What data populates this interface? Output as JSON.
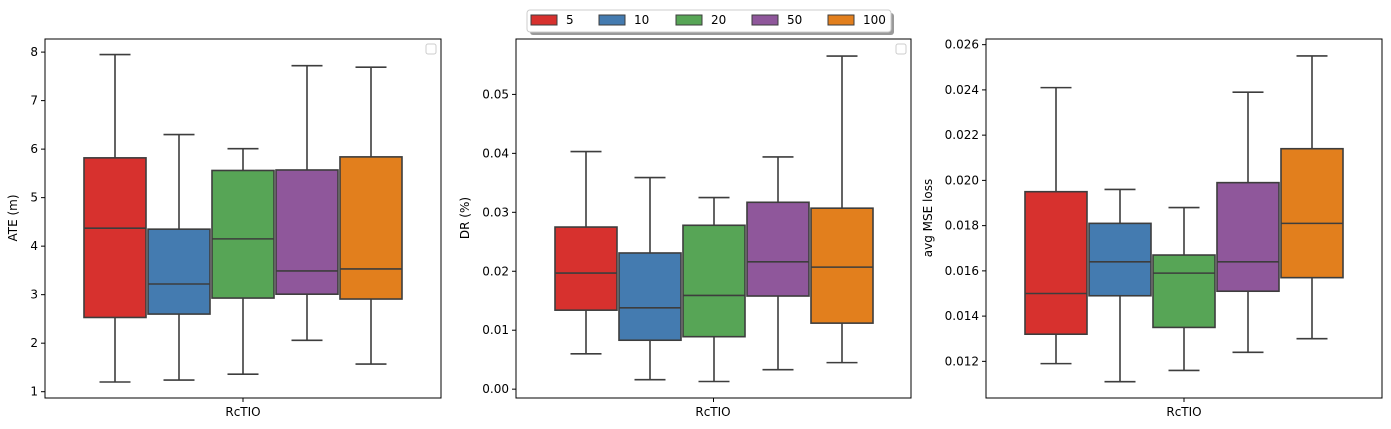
{
  "legend": {
    "entries": [
      {
        "label": "5",
        "color": "#d7312e"
      },
      {
        "label": "10",
        "color": "#447bb0"
      },
      {
        "label": "20",
        "color": "#57a556"
      },
      {
        "label": "50",
        "color": "#8f579b"
      },
      {
        "label": "100",
        "color": "#e27f1d"
      }
    ]
  },
  "chart_data": [
    {
      "type": "box",
      "category": "RcTIO",
      "ylabel": "ATE (m)",
      "ylim": [
        0.87,
        8.27
      ],
      "yticks": [
        1,
        2,
        3,
        4,
        5,
        6,
        7,
        8
      ],
      "series": [
        {
          "name": "5",
          "whisker_low": 1.2,
          "q1": 2.53,
          "median": 4.37,
          "q3": 5.82,
          "whisker_high": 7.95
        },
        {
          "name": "10",
          "whisker_low": 1.24,
          "q1": 2.6,
          "median": 3.22,
          "q3": 4.35,
          "whisker_high": 6.3
        },
        {
          "name": "20",
          "whisker_low": 1.36,
          "q1": 2.93,
          "median": 4.15,
          "q3": 5.56,
          "whisker_high": 6.01
        },
        {
          "name": "50",
          "whisker_low": 2.06,
          "q1": 3.01,
          "median": 3.49,
          "q3": 5.57,
          "whisker_high": 7.72
        },
        {
          "name": "100",
          "whisker_low": 1.57,
          "q1": 2.91,
          "median": 3.53,
          "q3": 5.84,
          "whisker_high": 7.69
        }
      ]
    },
    {
      "type": "box",
      "category": "RcTIO",
      "ylabel": "DR (%)",
      "ylim": [
        -0.0015,
        0.0594
      ],
      "yticks": [
        0.0,
        0.01,
        0.02,
        0.03,
        0.04,
        0.05
      ],
      "ytick_labels": [
        "0.00",
        "0.01",
        "0.02",
        "0.03",
        "0.04",
        "0.05"
      ],
      "series": [
        {
          "name": "5",
          "whisker_low": 0.006,
          "q1": 0.0134,
          "median": 0.0197,
          "q3": 0.0275,
          "whisker_high": 0.0403
        },
        {
          "name": "10",
          "whisker_low": 0.0016,
          "q1": 0.0083,
          "median": 0.0138,
          "q3": 0.0231,
          "whisker_high": 0.0359
        },
        {
          "name": "20",
          "whisker_low": 0.0013,
          "q1": 0.0089,
          "median": 0.0159,
          "q3": 0.0278,
          "whisker_high": 0.0325
        },
        {
          "name": "50",
          "whisker_low": 0.0033,
          "q1": 0.0158,
          "median": 0.0216,
          "q3": 0.0317,
          "whisker_high": 0.0394
        },
        {
          "name": "100",
          "whisker_low": 0.0045,
          "q1": 0.0112,
          "median": 0.0207,
          "q3": 0.0307,
          "whisker_high": 0.0565
        }
      ]
    },
    {
      "type": "box",
      "category": "RcTIO",
      "ylabel": "avg MSE loss",
      "ylim": [
        0.01038,
        0.02625
      ],
      "yticks": [
        0.012,
        0.014,
        0.016,
        0.018,
        0.02,
        0.022,
        0.024,
        0.026
      ],
      "ytick_labels": [
        "0.012",
        "0.014",
        "0.016",
        "0.018",
        "0.020",
        "0.022",
        "0.024",
        "0.026"
      ],
      "series": [
        {
          "name": "5",
          "whisker_low": 0.0119,
          "q1": 0.0132,
          "median": 0.015,
          "q3": 0.0195,
          "whisker_high": 0.0241
        },
        {
          "name": "10",
          "whisker_low": 0.0111,
          "q1": 0.0149,
          "median": 0.0164,
          "q3": 0.0181,
          "whisker_high": 0.0196
        },
        {
          "name": "20",
          "whisker_low": 0.0116,
          "q1": 0.0135,
          "median": 0.0159,
          "q3": 0.0167,
          "whisker_high": 0.0188
        },
        {
          "name": "50",
          "whisker_low": 0.0124,
          "q1": 0.0151,
          "median": 0.0164,
          "q3": 0.0199,
          "whisker_high": 0.0239
        },
        {
          "name": "100",
          "whisker_low": 0.013,
          "q1": 0.0157,
          "median": 0.0181,
          "q3": 0.0214,
          "whisker_high": 0.0255
        }
      ]
    }
  ]
}
